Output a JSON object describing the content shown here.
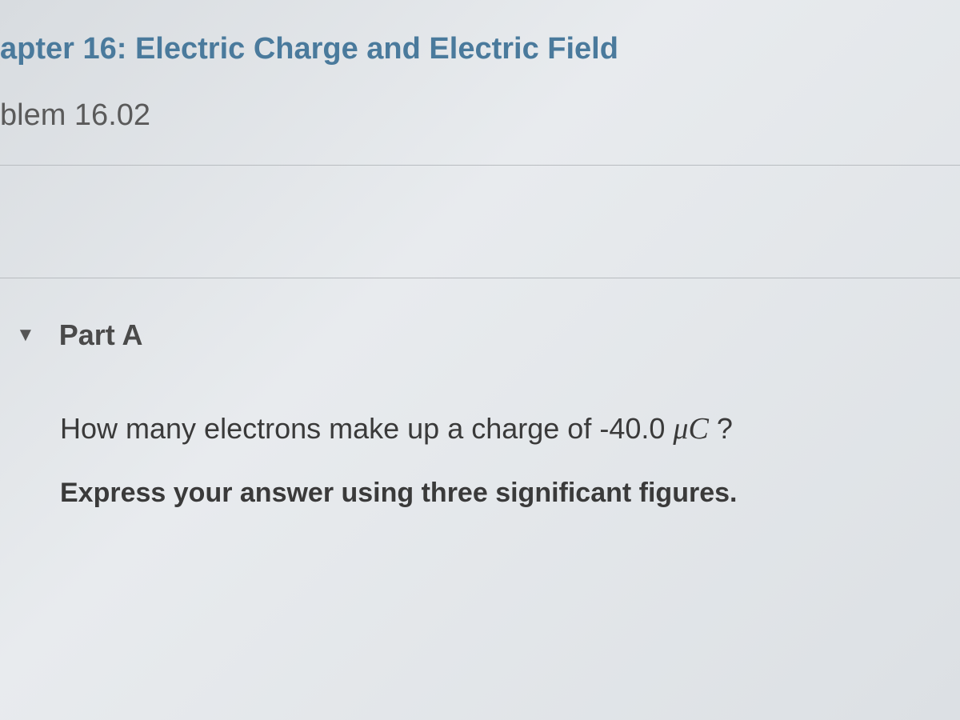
{
  "header": {
    "chapter_link": "apter 16: Electric Charge and Electric Field",
    "problem_label": "blem 16.02"
  },
  "part": {
    "collapse_glyph": "▼",
    "title": "Part A",
    "question_prefix": "How many electrons make up a charge of -40.0  ",
    "question_unit_mu": "μ",
    "question_unit_c": "C",
    "question_suffix": " ?",
    "instruction": "Express your answer using three significant figures."
  },
  "colors": {
    "link_color": "#4a7a9c",
    "text_color": "#3a3a3a",
    "heading_color": "#5a5a5a",
    "divider_color": "#b8bcc0",
    "background_start": "#d8dce0",
    "background_end": "#dce0e4"
  },
  "typography": {
    "chapter_fontsize": 38,
    "problem_fontsize": 38,
    "part_fontsize": 36,
    "question_fontsize": 36,
    "instruction_fontsize": 34
  }
}
